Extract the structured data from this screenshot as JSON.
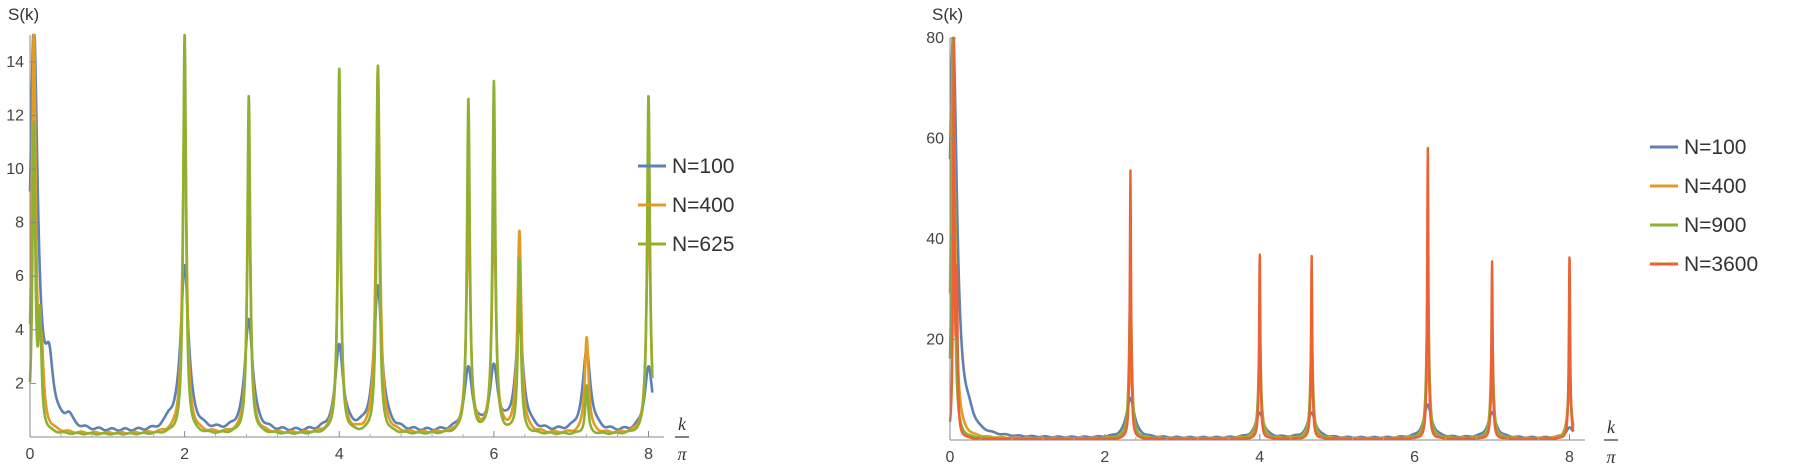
{
  "colors": {
    "blue": "#5E81B5",
    "orange": "#E19C24",
    "green": "#8FB032",
    "red": "#EB6235",
    "axis": "#888888"
  },
  "chart_data": [
    {
      "type": "line",
      "ylabel": "S(k)",
      "xlabel_num": "k",
      "xlabel_den": "π",
      "xlim": [
        0,
        8.2
      ],
      "ylim": [
        0,
        15
      ],
      "x_ticks": [
        0,
        2,
        4,
        6,
        8
      ],
      "x_tick_labels": [
        "0",
        "2",
        "4",
        "6",
        "8"
      ],
      "y_ticks": [
        2,
        4,
        6,
        8,
        10,
        12,
        14
      ],
      "y_tick_labels": [
        "2",
        "4",
        "6",
        "8",
        "10",
        "12",
        "14"
      ],
      "legend_position": "right",
      "series": [
        {
          "name": "N=100",
          "color": "#5E81B5",
          "baseline": 0.18,
          "width": 0.06,
          "peaks": [
            [
              0.05,
              15
            ],
            [
              0.25,
              2.0
            ],
            [
              0.5,
              0.4
            ],
            [
              1.8,
              0.3
            ],
            [
              2.0,
              6.2
            ],
            [
              2.83,
              4.2
            ],
            [
              4.0,
              3.2
            ],
            [
              4.5,
              5.4
            ],
            [
              5.67,
              2.3
            ],
            [
              6.0,
              2.3
            ],
            [
              6.33,
              3.9
            ],
            [
              7.2,
              3.0
            ],
            [
              8.0,
              2.4
            ]
          ]
        },
        {
          "name": "N=400",
          "color": "#E19C24",
          "baseline": 0.12,
          "width": 0.03,
          "peaks": [
            [
              0.05,
              15
            ],
            [
              0.15,
              2.5
            ],
            [
              2.0,
              12.5
            ],
            [
              2.83,
              8.8
            ],
            [
              4.0,
              8.9
            ],
            [
              4.5,
              13.7
            ],
            [
              5.67,
              8.1
            ],
            [
              6.0,
              8.3
            ],
            [
              6.33,
              7.5
            ],
            [
              7.2,
              3.6
            ],
            [
              8.0,
              8.6
            ]
          ]
        },
        {
          "name": "N=625",
          "color": "#8FB032",
          "baseline": 0.1,
          "width": 0.022,
          "peaks": [
            [
              0.05,
              11.4
            ],
            [
              0.13,
              4.0
            ],
            [
              2.0,
              15
            ],
            [
              2.83,
              12.6
            ],
            [
              4.0,
              13.6
            ],
            [
              4.5,
              13.7
            ],
            [
              5.67,
              12.5
            ],
            [
              6.0,
              13.1
            ],
            [
              6.33,
              6.5
            ],
            [
              7.2,
              1.8
            ],
            [
              8.0,
              12.7
            ]
          ]
        }
      ]
    },
    {
      "type": "line",
      "ylabel": "S(k)",
      "xlabel_num": "k",
      "xlabel_den": "π",
      "xlim": [
        0,
        8.2
      ],
      "ylim": [
        0,
        80
      ],
      "x_ticks": [
        0,
        2,
        4,
        6,
        8
      ],
      "x_tick_labels": [
        "0",
        "2",
        "4",
        "6",
        "8"
      ],
      "y_ticks": [
        20,
        40,
        60,
        80
      ],
      "y_tick_labels": [
        "20",
        "40",
        "60",
        "80"
      ],
      "legend_position": "right",
      "series": [
        {
          "name": "N=100",
          "color": "#5E81B5",
          "baseline": 0.4,
          "width": 0.06,
          "peaks": [
            [
              0.04,
              80
            ],
            [
              0.25,
              2.0
            ],
            [
              2.33,
              8.0
            ],
            [
              4.0,
              5.0
            ],
            [
              4.67,
              5.0
            ],
            [
              6.17,
              6.5
            ],
            [
              7.0,
              5.0
            ],
            [
              8.0,
              2.0
            ]
          ]
        },
        {
          "name": "N=400",
          "color": "#E19C24",
          "baseline": 0.3,
          "width": 0.03,
          "peaks": [
            [
              0.04,
              80
            ],
            [
              2.33,
              15
            ],
            [
              4.0,
              12
            ],
            [
              4.67,
              11
            ],
            [
              6.17,
              15
            ],
            [
              7.0,
              10
            ],
            [
              8.0,
              10
            ]
          ]
        },
        {
          "name": "N=900",
          "color": "#8FB032",
          "baseline": 0.25,
          "width": 0.02,
          "peaks": [
            [
              0.04,
              80
            ],
            [
              2.33,
              30
            ],
            [
              4.0,
              20
            ],
            [
              4.67,
              20
            ],
            [
              6.17,
              30
            ],
            [
              7.0,
              20
            ],
            [
              8.0,
              15
            ]
          ]
        },
        {
          "name": "N=3600",
          "color": "#EB6235",
          "baseline": 0.2,
          "width": 0.01,
          "peaks": [
            [
              0.05,
              80
            ],
            [
              0.09,
              30
            ],
            [
              2.33,
              53.5
            ],
            [
              4.0,
              37
            ],
            [
              4.67,
              36.5
            ],
            [
              6.17,
              58
            ],
            [
              7.0,
              35.5
            ],
            [
              8.0,
              37
            ]
          ]
        }
      ]
    }
  ]
}
